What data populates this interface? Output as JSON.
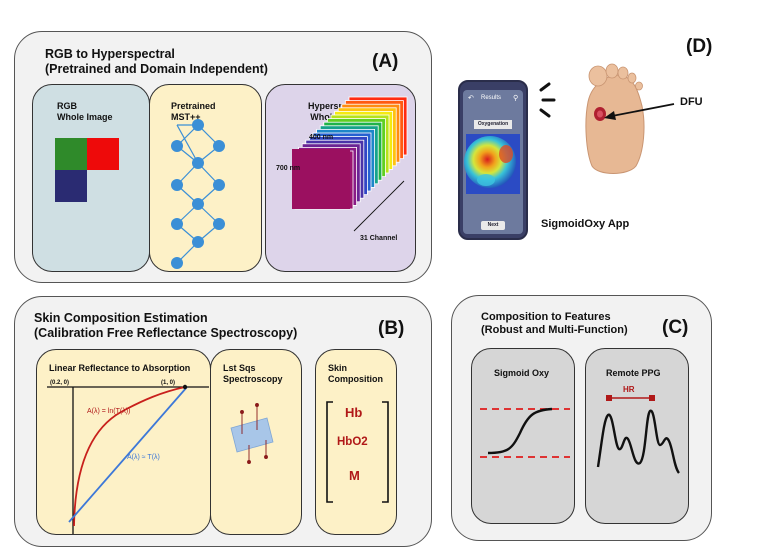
{
  "panel_a": {
    "title_line1": "RGB to Hyperspectral",
    "title_line2": "(Pretrained and Domain Independent)",
    "letter": "(A)",
    "rgb_card": {
      "line1": "RGB",
      "line2": "Whole Image"
    },
    "mst_card": {
      "line1": "Pretrained",
      "line2": "MST++"
    },
    "hyper_card": {
      "line1": "Hyperspectral",
      "line2": "Whole Image",
      "label_top": "400 nm",
      "label_left": "700 nm",
      "label_channels": "31 Channel"
    }
  },
  "panel_b": {
    "title_line1": "Skin Composition Estimation",
    "title_line2": "(Calibration Free Reflectance Spectroscopy)",
    "letter": "(B)",
    "linear_card": {
      "title": "Linear Reflectance to Absorption",
      "point_left": "(0.2, 0)",
      "point_right": "(1, 0)",
      "curve_label": "A(λ) = ln(T(λ))",
      "line_label": "A(λ) ≈ T(λ)"
    },
    "lsq_card": {
      "line1": "Lst Sqs",
      "line2": "Spectroscopy"
    },
    "comp_card": {
      "line1": "Skin",
      "line2": "Composition",
      "items": [
        "Hb",
        "HbO2",
        "M"
      ]
    }
  },
  "panel_c": {
    "title_line1": "Composition to Features",
    "title_line2": "(Robust and Multi-Function)",
    "letter": "(C)",
    "sigmoid_card": {
      "title": "Sigmoid Oxy"
    },
    "ppg_card": {
      "title": "Remote PPG",
      "hr_label": "HR"
    }
  },
  "panel_d": {
    "letter": "(D)",
    "phone": {
      "header": "Results",
      "section": "Oxygenation",
      "button": "Next"
    },
    "app_label": "SigmoidOxy App",
    "dfu_label": "DFU"
  },
  "colors": {
    "panel_bg": "#f2f2f2",
    "rgb_card_bg": "#cfdfe3",
    "mst_card_bg": "#fdf1c7",
    "hyper_card_bg": "#ddd4ea",
    "feature_card_bg": "#d6d6d6",
    "node_blue": "#3b8fd6",
    "accent_red": "#b01818",
    "line_blue": "#3d78d8"
  }
}
